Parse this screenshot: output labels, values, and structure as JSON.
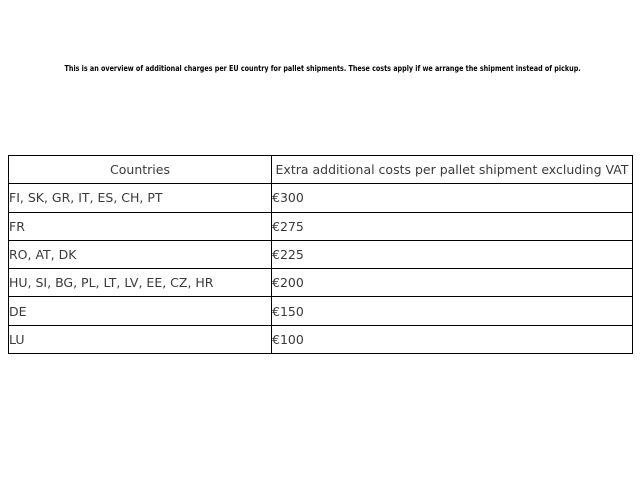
{
  "intro": {
    "text": "This is an overview of additional charges per EU country for pallet shipments. These costs apply if we arrange the shipment instead of pickup."
  },
  "table": {
    "headers": {
      "countries": "Countries",
      "cost": "Extra additional costs per pallet shipment excluding VAT"
    },
    "rows": [
      {
        "countries": "FI, SK, GR, IT, ES, CH, PT",
        "cost": "€300"
      },
      {
        "countries": "FR",
        "cost": "€275"
      },
      {
        "countries": "RO, AT, DK",
        "cost": "€225"
      },
      {
        "countries": "HU, SI, BG, PL, LT, LV, EE, CZ, HR",
        "cost": "€200"
      },
      {
        "countries": "DE",
        "cost": "€150"
      },
      {
        "countries": "LU",
        "cost": "€100"
      }
    ]
  },
  "colors": {
    "background": "#ffffff",
    "table_border": "#000000",
    "table_text": "#3a3a3a",
    "intro_text": "#000000"
  }
}
